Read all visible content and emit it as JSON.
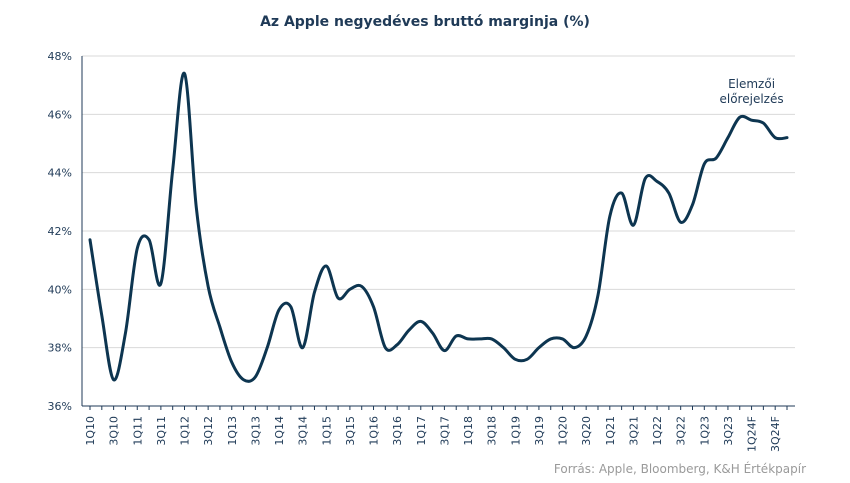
{
  "chart_data": {
    "type": "line",
    "title": "Az Apple negyedéves bruttó marginja (%)",
    "source": "Forrás: Apple,  Bloomberg,  K&H Értékpapír",
    "xlabel": "",
    "ylabel": "",
    "ylim": [
      36,
      48
    ],
    "y_ticks": [
      "36%",
      "38%",
      "40%",
      "42%",
      "44%",
      "46%",
      "48%"
    ],
    "y_tick_values": [
      36,
      38,
      40,
      42,
      44,
      46,
      48
    ],
    "grid": true,
    "legend": "none",
    "color": "#0d3550",
    "x": [
      "1Q10",
      "2Q10",
      "3Q10",
      "4Q10",
      "1Q11",
      "2Q11",
      "3Q11",
      "4Q11",
      "1Q12",
      "2Q12",
      "3Q12",
      "4Q12",
      "1Q13",
      "2Q13",
      "3Q13",
      "4Q13",
      "1Q14",
      "2Q14",
      "3Q14",
      "4Q14",
      "1Q15",
      "2Q15",
      "3Q15",
      "4Q15",
      "1Q16",
      "2Q16",
      "3Q16",
      "4Q16",
      "1Q17",
      "2Q17",
      "3Q17",
      "4Q17",
      "1Q18",
      "2Q18",
      "3Q18",
      "4Q18",
      "1Q19",
      "2Q19",
      "3Q19",
      "4Q19",
      "1Q20",
      "2Q20",
      "3Q20",
      "4Q20",
      "1Q21",
      "2Q21",
      "3Q21",
      "4Q21",
      "1Q22",
      "2Q22",
      "3Q22",
      "4Q22",
      "1Q23",
      "2Q23",
      "3Q23",
      "4Q23",
      "1Q24F",
      "2Q24F",
      "3Q24F",
      "4Q24F"
    ],
    "x_tick_labels": [
      "1Q10",
      "3Q10",
      "1Q11",
      "3Q11",
      "1Q12",
      "3Q12",
      "1Q13",
      "3Q13",
      "1Q14",
      "3Q14",
      "1Q15",
      "3Q15",
      "1Q16",
      "3Q16",
      "1Q17",
      "3Q17",
      "1Q18",
      "3Q18",
      "1Q19",
      "3Q19",
      "1Q20",
      "3Q20",
      "1Q21",
      "3Q21",
      "1Q22",
      "3Q22",
      "1Q23",
      "3Q23",
      "1Q24F",
      "3Q24F"
    ],
    "series": [
      {
        "values": [
          41.7,
          39.1,
          36.9,
          38.5,
          41.4,
          41.7,
          40.2,
          44.1,
          47.4,
          42.8,
          40.1,
          38.7,
          37.5,
          36.9,
          37.0,
          38.0,
          39.3,
          39.4,
          38.0,
          39.9,
          40.8,
          39.7,
          40.0,
          40.1,
          39.4,
          38.0,
          38.1,
          38.6,
          38.9,
          38.5,
          37.9,
          38.4,
          38.3,
          38.3,
          38.3,
          38.0,
          37.6,
          37.6,
          38.0,
          38.3,
          38.3,
          38.0,
          38.4,
          39.8,
          42.5,
          43.3,
          42.2,
          43.8,
          43.7,
          43.3,
          42.3,
          42.9,
          44.3,
          44.5,
          45.2,
          45.9,
          45.8,
          45.7,
          45.2,
          45.2
        ]
      }
    ],
    "annotations": [
      {
        "lines": [
          "Elemzői",
          "előrejelzés"
        ],
        "x_category": "1Q24F",
        "y": 46.9
      }
    ]
  }
}
